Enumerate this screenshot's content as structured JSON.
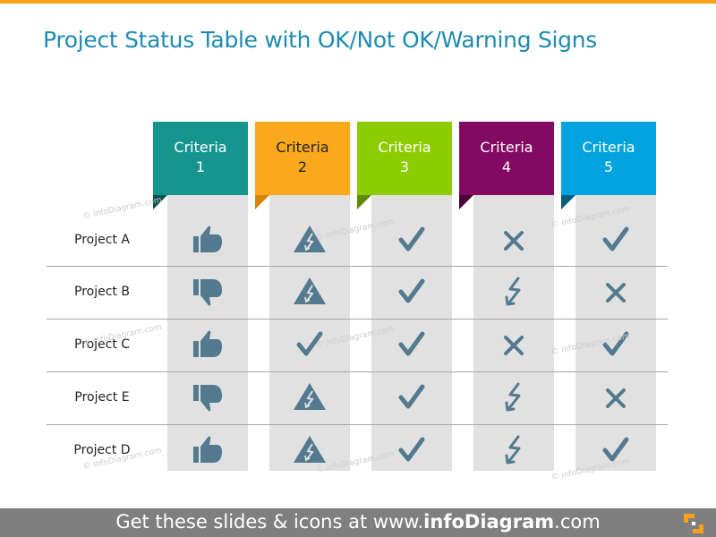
{
  "title": "Project Status Table with OK/Not OK/Warning Signs",
  "colors": {
    "top_bar": "#F9A11B",
    "title": "#1E8BB2",
    "icon": "#537A8E",
    "column_bg": "#E1E1E1",
    "footer_bg": "#7F7F7F"
  },
  "criteria": [
    {
      "line1": "Criteria",
      "line2": "1",
      "color": "#16958E",
      "fold": "#0B4F4B",
      "text_color": "#ffffff"
    },
    {
      "line1": "Criteria",
      "line2": "2",
      "color": "#F9A91B",
      "fold": "#D9830B",
      "text_color": "#222222"
    },
    {
      "line1": "Criteria",
      "line2": "3",
      "color": "#8DCC00",
      "fold": "#5E8C00",
      "text_color": "#ffffff"
    },
    {
      "line1": "Criteria",
      "line2": "4",
      "color": "#830A62",
      "fold": "#4A0437",
      "text_color": "#ffffff"
    },
    {
      "line1": "Criteria",
      "line2": "5",
      "color": "#00A3DD",
      "fold": "#005C7E",
      "text_color": "#ffffff"
    }
  ],
  "projects": [
    {
      "name": "Project A",
      "status": [
        "thumbs-up",
        "warning-triangle",
        "check",
        "cross",
        "check"
      ]
    },
    {
      "name": "Project B",
      "status": [
        "thumbs-down",
        "warning-triangle",
        "check",
        "lightning",
        "cross"
      ]
    },
    {
      "name": "Project C",
      "status": [
        "thumbs-up",
        "check",
        "check",
        "cross",
        "check"
      ]
    },
    {
      "name": "Project E",
      "status": [
        "thumbs-down",
        "warning-triangle",
        "check",
        "lightning",
        "cross"
      ]
    },
    {
      "name": "Project D",
      "status": [
        "thumbs-up",
        "warning-triangle",
        "check",
        "lightning",
        "check"
      ]
    }
  ],
  "watermark": "© infoDiagram.com",
  "footer": {
    "prefix": "Get these slides & icons at www.",
    "brand": "infoDiagram",
    "suffix": ".com"
  }
}
